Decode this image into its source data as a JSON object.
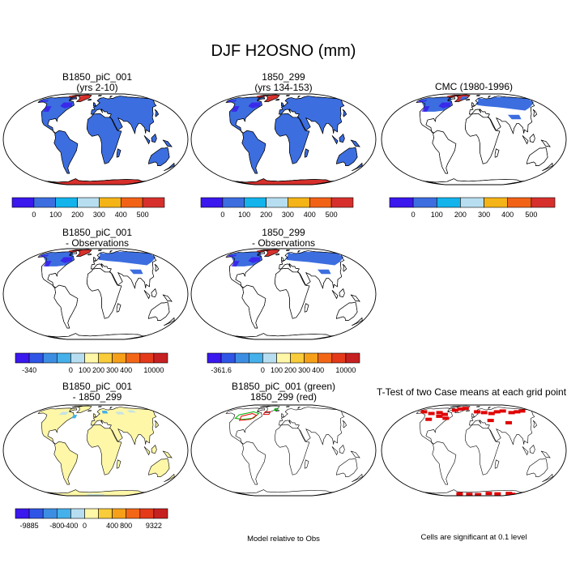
{
  "title": "DJF H2OSNO (mm)",
  "colors": {
    "abs_scale": [
      "#3a18ee",
      "#3c6ee0",
      "#13b3ec",
      "#b7def0",
      "#f4b417",
      "#f26216",
      "#d7302c"
    ],
    "diff_scale": [
      "#3a18ee",
      "#2f55e6",
      "#3c8ee3",
      "#45b0ea",
      "#b7def0",
      "#fff7a8",
      "#f8cc3a",
      "#f5a018",
      "#f26616",
      "#e43a1a",
      "#c72020"
    ],
    "map_outline": "#000000",
    "land_fill": "#ffffff",
    "green_contour": "#00b000",
    "red_contour": "#e00000"
  },
  "panels": [
    {
      "title1": "B1850_piC_001",
      "title2": "(yrs 2-10)",
      "type": "absolute",
      "base_color": "#3c6ee0"
    },
    {
      "title1": "1850_299",
      "title2": "(yrs 134-153)",
      "type": "absolute",
      "base_color": "#3c6ee0"
    },
    {
      "title1": "CMC (1980-1996)",
      "title2": "",
      "type": "absolute_obs",
      "base_color": "#3c6ee0"
    },
    {
      "title1": "B1850_piC_001",
      "title2": "- Observations",
      "type": "difference_obs",
      "base_color": "#3c6ee0"
    },
    {
      "title1": "1850_299",
      "title2": "- Observations",
      "type": "difference_obs",
      "base_color": "#3c6ee0"
    },
    {
      "title1": "B1850_piC_001",
      "title2": "- 1850_299",
      "type": "difference_cases",
      "base_color": "#fff7a8"
    },
    {
      "title1": "B1850_piC_001 (green)",
      "title2": "1850_299 (red)",
      "type": "contours"
    },
    {
      "title1": "T-Test of two Case means at each grid point",
      "title2": "",
      "type": "ttest"
    }
  ],
  "colorbars": [
    {
      "labels": [
        "0",
        "100",
        "200",
        "300",
        "400",
        "500"
      ]
    },
    {
      "labels": [
        "0",
        "100",
        "200",
        "300",
        "400",
        "500"
      ]
    },
    {
      "labels": [
        "0",
        "100",
        "200",
        "300",
        "400",
        "500"
      ]
    },
    {
      "labels": [
        "-340",
        "0",
        "100",
        "200",
        "300",
        "400",
        "10000"
      ]
    },
    {
      "labels": [
        "-361.6",
        "0",
        "100",
        "200",
        "300",
        "400",
        "10000"
      ]
    },
    {
      "labels": [
        "-9885",
        "-800",
        "-400",
        "0",
        "400",
        "800",
        "9322"
      ]
    }
  ],
  "notes": {
    "contours": "Model relative to Obs",
    "ttest": "Cells are significant at 0.1 level"
  }
}
